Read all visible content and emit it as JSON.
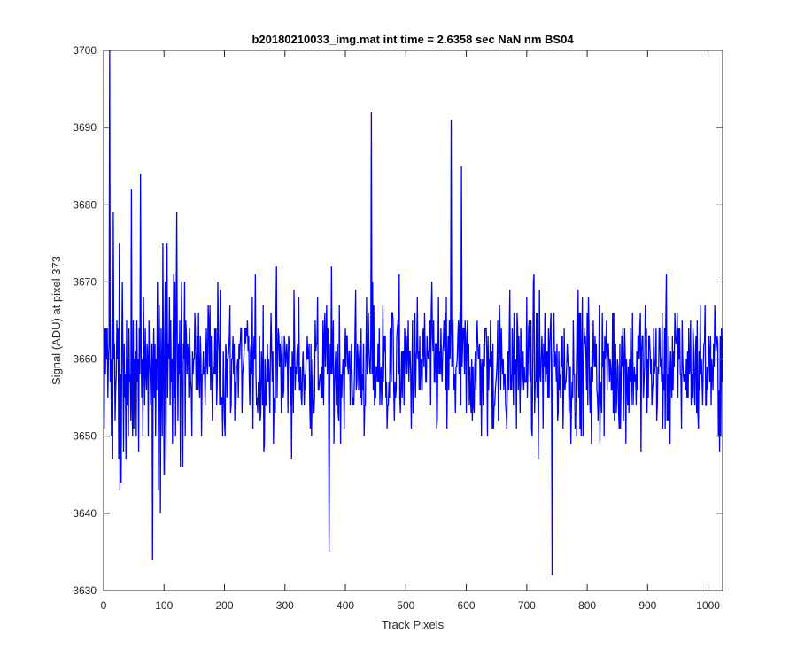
{
  "chart_data": {
    "type": "line",
    "title": "b20180210033_img.mat int time = 2.6358 sec  NaN nm BS04",
    "xlabel": "Track Pixels",
    "ylabel": "Signal (ADU) at pixel 373",
    "xlim": [
      0,
      1024
    ],
    "ylim": [
      3630,
      3700
    ],
    "xticks": [
      0,
      100,
      200,
      300,
      400,
      500,
      600,
      700,
      800,
      900,
      1000
    ],
    "yticks": [
      3630,
      3640,
      3650,
      3660,
      3670,
      3680,
      3690,
      3700
    ],
    "grid": false,
    "legend": "none",
    "line_color": "#0000ff",
    "series": [
      {
        "x_start": 1,
        "x_step": 1,
        "note_values": "approximate readings of the noisy trace; continues to x=1024",
        "values": [
          3651,
          3664,
          3658,
          3664,
          3660,
          3664,
          3655,
          3660,
          3662,
          3700,
          3657,
          3660,
          3650,
          3665,
          3647,
          3679,
          3660,
          3662,
          3652,
          3656,
          3658,
          3665,
          3660,
          3664,
          3647,
          3675,
          3643,
          3658,
          3644,
          3661,
          3670,
          3660,
          3648,
          3662,
          3655,
          3658,
          3647,
          3665,
          3654,
          3660,
          3650,
          3664,
          3657,
          3658,
          3652,
          3682,
          3654,
          3650,
          3665,
          3651,
          3660,
          3658,
          3661,
          3650,
          3665,
          3657,
          3660,
          3648,
          3664,
          3658,
          3684,
          3662,
          3655,
          3660,
          3650,
          3668,
          3660,
          3654,
          3664,
          3658,
          3656,
          3662,
          3660,
          3650,
          3665,
          3660,
          3658,
          3654,
          3661,
          3662,
          3634,
          3660,
          3664,
          3655,
          3662,
          3650,
          3660,
          3656,
          3670,
          3662,
          3643,
          3667,
          3660,
          3640,
          3664,
          3658,
          3650,
          3675,
          3660,
          3645,
          3662,
          3670,
          3645,
          3660,
          3675,
          3655,
          3662,
          3660,
          3668,
          3654,
          3665,
          3657,
          3660,
          3649,
          3662,
          3671,
          3655,
          3670,
          3650,
          3665,
          3679,
          3660,
          3652,
          3662,
          3658,
          3665,
          3646,
          3660,
          3670,
          3652,
          3646,
          3662,
          3660,
          3670,
          3650
        ]
      }
    ]
  }
}
